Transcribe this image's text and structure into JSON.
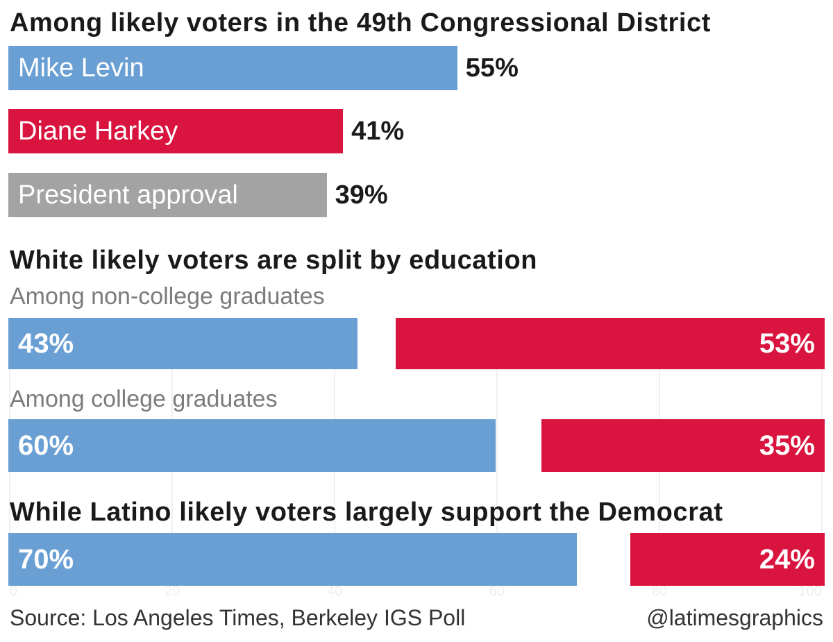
{
  "colors": {
    "levin": "#6a9fd4",
    "harkey": "#d9143f",
    "approval": "#a3a3a3"
  },
  "section1": {
    "title": "Among likely voters in the 49th Congressional District"
  },
  "section2": {
    "title": "White likely voters are split by education",
    "group1_label": "Among non-college graduates",
    "group2_label": "Among college graduates"
  },
  "section3": {
    "title": "While Latino likely voters largely support the Democrat"
  },
  "footer": {
    "source": "Source: Los Angeles Times, Berkeley IGS Poll",
    "credit": "@latimesgraphics"
  },
  "chart_data": [
    {
      "type": "bar",
      "title": "Among likely voters in the 49th Congressional District",
      "categories": [
        "Mike Levin",
        "Diane Harkey",
        "President approval"
      ],
      "values": [
        55,
        41,
        39
      ],
      "value_labels": [
        "55%",
        "41%",
        "39%"
      ],
      "xlim": [
        0,
        100
      ]
    },
    {
      "type": "bar",
      "title": "White likely voters are split by education",
      "categories": [
        "Among non-college graduates",
        "Among college graduates"
      ],
      "series": [
        {
          "values": [
            43,
            60
          ],
          "labels": [
            "43%",
            "60%"
          ]
        },
        {
          "values": [
            53,
            35
          ],
          "labels": [
            "53%",
            "35%"
          ]
        }
      ],
      "xlim": [
        0,
        100
      ]
    },
    {
      "type": "bar",
      "title": "While Latino likely voters largely support the Democrat",
      "categories": [
        ""
      ],
      "series": [
        {
          "values": [
            70
          ],
          "labels": [
            "70%"
          ]
        },
        {
          "values": [
            24
          ],
          "labels": [
            "24%"
          ]
        }
      ],
      "xlim": [
        0,
        100
      ]
    }
  ],
  "ghost_axis": {
    "ticks": [
      "0",
      "20",
      "40",
      "60",
      "80",
      "100"
    ]
  }
}
